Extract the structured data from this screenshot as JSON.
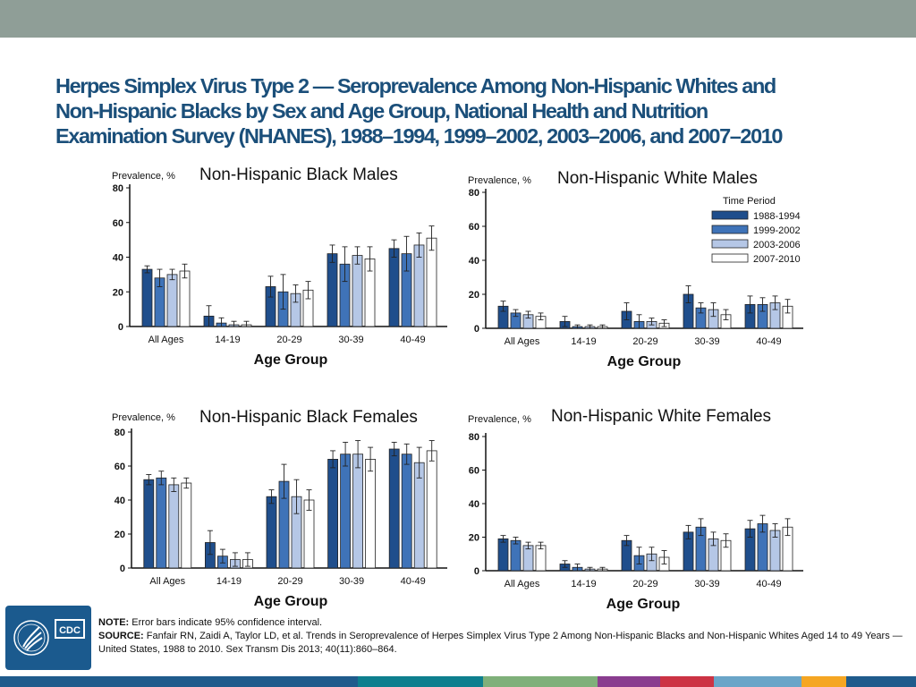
{
  "header": {
    "title_lines": [
      "Herpes Simplex Virus Type 2 — Seroprevalence Among Non-Hispanic Whites and",
      "Non-Hispanic Blacks by Sex and Age Group, National Health and Nutrition",
      "Examination Survey (NHANES), 1988–1994, 1999–2002, 2003–2006, and 2007–2010"
    ]
  },
  "colors": {
    "title": "#1b4f7a",
    "top_bar": "#8f9e97",
    "series": [
      "#1f4e8c",
      "#3f73b8",
      "#b5c7e6",
      "#ffffff"
    ],
    "bar_stroke": "#222222",
    "bottom_strip": [
      "#1f5b8c",
      "#0d7f8e",
      "#7fb07a",
      "#8a3d8f",
      "#cc3344",
      "#6aa5c8",
      "#f5a623",
      "#1f5b8c"
    ]
  },
  "chart_data": [
    {
      "type": "bar",
      "title": "Non-Hispanic Black Males",
      "ylabel": "Prevalence, %",
      "xlabel": "Age Group",
      "ylim": [
        0,
        80
      ],
      "yticks": [
        "0",
        "20",
        "40",
        "60",
        "80"
      ],
      "categories": [
        "All Ages",
        "14-19",
        "20-29",
        "30-39",
        "40-49"
      ],
      "legend": "none",
      "series": [
        {
          "name": "1988-1994",
          "values": [
            33,
            6,
            23,
            42,
            45
          ],
          "errors": [
            2,
            6,
            6,
            5,
            5
          ]
        },
        {
          "name": "1999-2002",
          "values": [
            28,
            2,
            20,
            36,
            42
          ],
          "errors": [
            5,
            3,
            10,
            10,
            10
          ]
        },
        {
          "name": "2003-2006",
          "values": [
            30,
            1,
            19,
            41,
            47
          ],
          "errors": [
            3,
            2,
            5,
            5,
            7
          ]
        },
        {
          "name": "2007-2010",
          "values": [
            32,
            1,
            21,
            39,
            51
          ],
          "errors": [
            4,
            2,
            5,
            7,
            7
          ]
        }
      ]
    },
    {
      "type": "bar",
      "title": "Non-Hispanic White Males",
      "ylabel": "Prevalence, %",
      "xlabel": "Age Group",
      "ylim": [
        0,
        80
      ],
      "yticks": [
        "0",
        "20",
        "40",
        "60",
        "80"
      ],
      "categories": [
        "All Ages",
        "14-19",
        "20-29",
        "30-39",
        "40-49"
      ],
      "legend": "top-right",
      "legend_title": "Time Period",
      "series": [
        {
          "name": "1988-1994",
          "values": [
            13,
            4,
            10,
            20,
            14
          ],
          "errors": [
            3,
            3,
            5,
            5,
            5
          ]
        },
        {
          "name": "1999-2002",
          "values": [
            9,
            1,
            4,
            12,
            14
          ],
          "errors": [
            2,
            1,
            4,
            3,
            4
          ]
        },
        {
          "name": "2003-2006",
          "values": [
            8,
            1,
            4,
            11,
            15
          ],
          "errors": [
            2,
            1,
            2,
            4,
            4
          ]
        },
        {
          "name": "2007-2010",
          "values": [
            7,
            1,
            3,
            8,
            13
          ],
          "errors": [
            2,
            1,
            2,
            3,
            4
          ]
        }
      ]
    },
    {
      "type": "bar",
      "title": "Non-Hispanic Black Females",
      "ylabel": "Prevalence, %",
      "xlabel": "Age Group",
      "ylim": [
        0,
        80
      ],
      "yticks": [
        "0",
        "20",
        "40",
        "60",
        "80"
      ],
      "categories": [
        "All Ages",
        "14-19",
        "20-29",
        "30-39",
        "40-49"
      ],
      "legend": "none",
      "series": [
        {
          "name": "1988-1994",
          "values": [
            52,
            15,
            42,
            64,
            70
          ],
          "errors": [
            3,
            7,
            4,
            5,
            4
          ]
        },
        {
          "name": "1999-2002",
          "values": [
            53,
            7,
            51,
            67,
            67
          ],
          "errors": [
            4,
            4,
            10,
            7,
            6
          ]
        },
        {
          "name": "2003-2006",
          "values": [
            49,
            5,
            42,
            67,
            62
          ],
          "errors": [
            4,
            4,
            10,
            8,
            9
          ]
        },
        {
          "name": "2007-2010",
          "values": [
            50,
            5,
            40,
            64,
            69
          ],
          "errors": [
            3,
            4,
            6,
            7,
            6
          ]
        }
      ]
    },
    {
      "type": "bar",
      "title": "Non-Hispanic White Females",
      "ylabel": "Prevalence, %",
      "xlabel": "Age Group",
      "ylim": [
        0,
        80
      ],
      "yticks": [
        "0",
        "20",
        "40",
        "60",
        "80"
      ],
      "categories": [
        "All Ages",
        "14-19",
        "20-29",
        "30-39",
        "40-49"
      ],
      "legend": "none",
      "series": [
        {
          "name": "1988-1994",
          "values": [
            19,
            4,
            18,
            23,
            25
          ],
          "errors": [
            2,
            2,
            3,
            4,
            5
          ]
        },
        {
          "name": "1999-2002",
          "values": [
            18,
            2,
            9,
            26,
            28
          ],
          "errors": [
            2,
            2,
            5,
            5,
            5
          ]
        },
        {
          "name": "2003-2006",
          "values": [
            15,
            1,
            10,
            19,
            24
          ],
          "errors": [
            2,
            1,
            4,
            4,
            4
          ]
        },
        {
          "name": "2007-2010",
          "values": [
            15,
            1,
            8,
            18,
            26
          ],
          "errors": [
            2,
            1,
            4,
            4,
            5
          ]
        }
      ]
    }
  ],
  "logo": {
    "text": "CDC"
  },
  "footnote": {
    "note_label": "NOTE:",
    "note_text": " Error bars indicate 95% confidence interval.",
    "source_label": "SOURCE:",
    "source_text": " Fanfair RN, Zaidi A, Taylor LD, et al. Trends in Seroprevalence of Herpes Simplex Virus Type 2 Among Non-Hispanic Blacks and Non-Hispanic Whites Aged 14 to 49 Years — United States, 1988 to 2010. Sex Transm Dis 2013; 40(11):860–864."
  }
}
